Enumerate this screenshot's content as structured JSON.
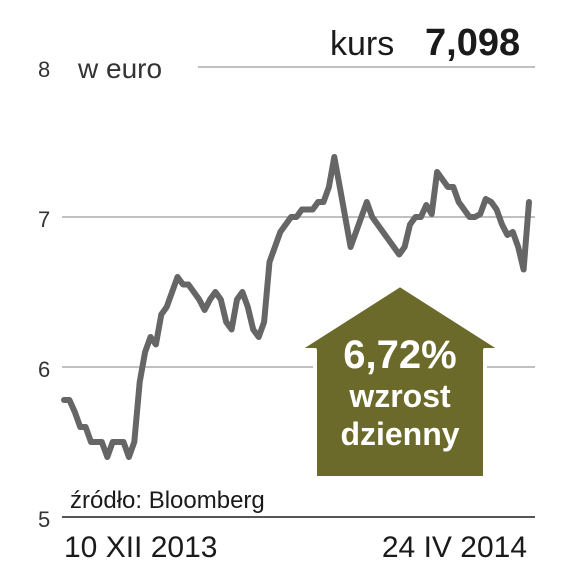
{
  "header": {
    "kurs_label": "kurs",
    "kurs_value": "7,098"
  },
  "badge": {
    "percent": "6,72%",
    "line1": "wzrost",
    "line2": "dzienny",
    "fill_color": "#6b6a2a"
  },
  "chart_data": {
    "type": "line",
    "title": "",
    "ylabel": "w euro",
    "ylim": [
      5,
      8
    ],
    "yticks": [
      "5",
      "6",
      "7",
      "8"
    ],
    "x_start_label": "10 XII 2013",
    "x_end_label": "24 IV 2014",
    "source": "źródło: Bloomberg",
    "grid": true,
    "line_color": "#666666",
    "series": [
      {
        "values": [
          5.78,
          5.78,
          5.7,
          5.6,
          5.6,
          5.5,
          5.5,
          5.5,
          5.4,
          5.5,
          5.5,
          5.5,
          5.4,
          5.5,
          5.9,
          6.1,
          6.2,
          6.15,
          6.35,
          6.4,
          6.5,
          6.6,
          6.55,
          6.55,
          6.5,
          6.45,
          6.38,
          6.45,
          6.5,
          6.45,
          6.3,
          6.25,
          6.45,
          6.5,
          6.4,
          6.25,
          6.2,
          6.3,
          6.7,
          6.8,
          6.9,
          6.95,
          7.0,
          7.0,
          7.05,
          7.05,
          7.05,
          7.1,
          7.1,
          7.2,
          7.4,
          7.2,
          7.0,
          6.8,
          6.9,
          7.0,
          7.1,
          7.0,
          6.95,
          6.9,
          6.85,
          6.8,
          6.75,
          6.8,
          6.95,
          7.0,
          7.0,
          7.08,
          7.02,
          7.3,
          7.25,
          7.2,
          7.2,
          7.1,
          7.05,
          7.0,
          7.0,
          7.02,
          7.12,
          7.1,
          7.05,
          6.95,
          6.88,
          6.9,
          6.8,
          6.65,
          7.1
        ]
      }
    ]
  }
}
